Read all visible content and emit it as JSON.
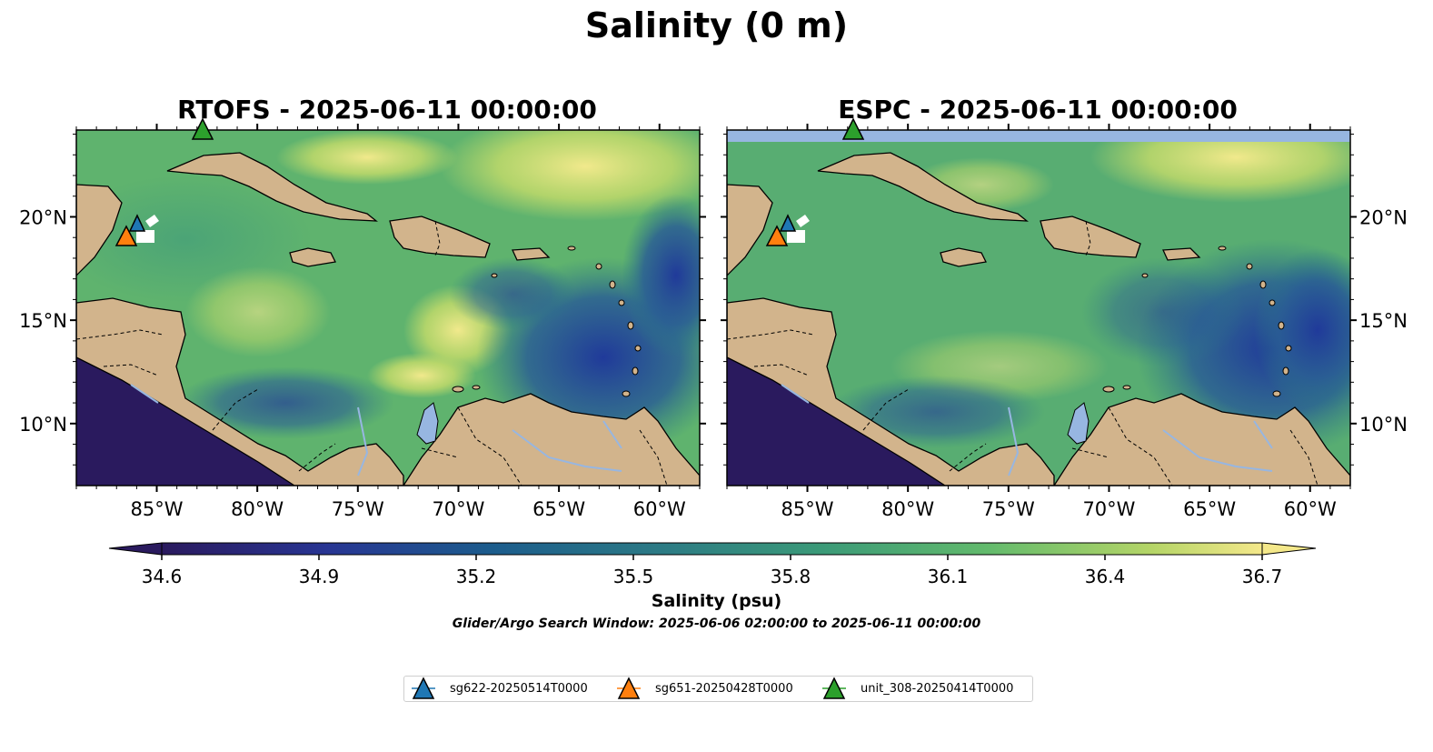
{
  "figure": {
    "title": "Salinity (0 m)",
    "panels": [
      {
        "title": "RTOFS - 2025-06-11 00:00:00",
        "model": "RTOFS"
      },
      {
        "title": "ESPC - 2025-06-11 00:00:00",
        "model": "ESPC"
      }
    ],
    "lon_ticks": [
      "85°W",
      "80°W",
      "75°W",
      "70°W",
      "65°W",
      "60°W"
    ],
    "lat_ticks": [
      "20°N",
      "15°N",
      "10°N"
    ],
    "lon_range": [
      -89,
      -58
    ],
    "lat_range": [
      7,
      24.2
    ],
    "colorbar": {
      "label": "Salinity (psu)",
      "ticks": [
        "34.6",
        "34.9",
        "35.2",
        "35.5",
        "35.8",
        "36.1",
        "36.4",
        "36.7"
      ],
      "range": [
        34.6,
        36.7
      ],
      "extend": "both",
      "colormap": "haline"
    },
    "search_window": "Glider/Argo Search Window: 2025-06-06 02:00:00 to 2025-06-11 00:00:00",
    "legend": [
      {
        "label": "sg622-20250514T0000",
        "color": "#1f77b4"
      },
      {
        "label": "sg651-20250428T0000",
        "color": "#ff7f0e"
      },
      {
        "label": "unit_308-20250414T0000",
        "color": "#2ca02c"
      }
    ],
    "markers": [
      {
        "glider": "sg622",
        "lon": -86.0,
        "lat": 19.6
      },
      {
        "glider": "sg651",
        "lon": -86.5,
        "lat": 19.0
      },
      {
        "glider": "unit_308",
        "lon": -82.5,
        "lat": 24.2
      }
    ],
    "colors": {
      "land": "#d2b48c",
      "water_features": "#97b6e1",
      "coastline": "#000000"
    }
  }
}
